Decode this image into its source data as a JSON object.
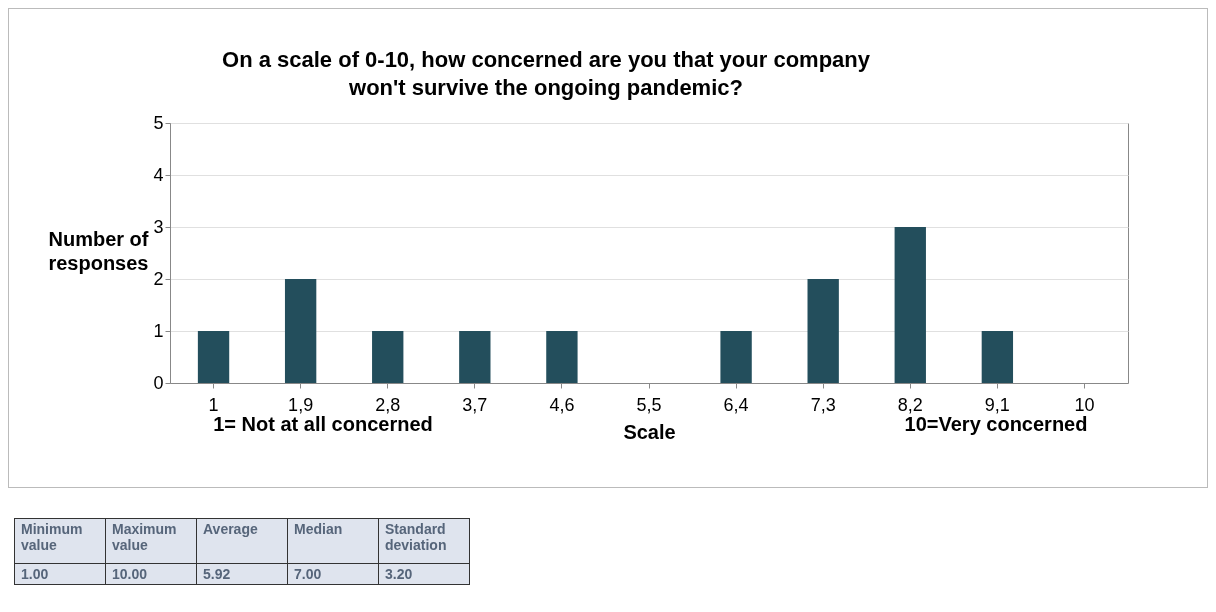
{
  "chart_data": {
    "type": "bar",
    "title": "On a scale of 0-10, how concerned are you that your company\nwon't survive the ongoing pandemic?",
    "categories": [
      "1",
      "1,9",
      "2,8",
      "3,7",
      "4,6",
      "5,5",
      "6,4",
      "7,3",
      "8,2",
      "9,1",
      "10"
    ],
    "values": [
      1,
      2,
      1,
      1,
      1,
      0,
      1,
      2,
      3,
      1,
      0
    ],
    "color": "#234e5c",
    "ylim": [
      0,
      5
    ],
    "yticks": [
      0,
      1,
      2,
      3,
      4,
      5
    ],
    "grid": "y",
    "xlabel": "Scale",
    "ylabel": "Number of\nresponses",
    "annotations": [
      "1= Not at all concerned",
      "10=Very concerned",
      "Minimum value",
      "Maximum value",
      "Average",
      "Median",
      "Standard deviation",
      "1.00",
      "10.00",
      "5.92",
      "7.00",
      "3.20"
    ]
  }
}
